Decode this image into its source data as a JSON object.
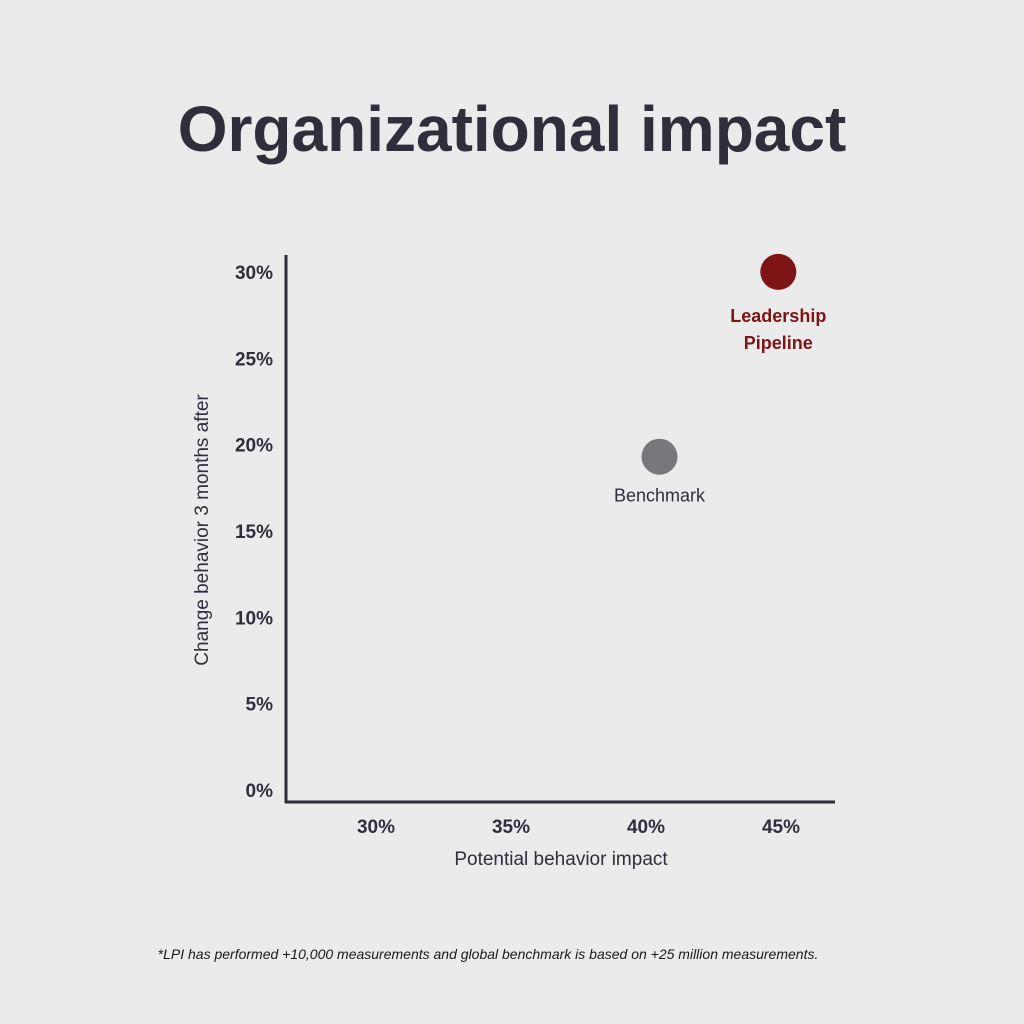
{
  "chart_data": {
    "type": "scatter",
    "title": "Organizational impact",
    "xlabel": "Potential behavior impact",
    "ylabel": "Change behavior 3 months after",
    "xlim": [
      26.9,
      50
    ],
    "ylim": [
      0,
      30
    ],
    "x_ticks": [
      "30%",
      "35%",
      "40%",
      "45%"
    ],
    "x_tick_values": [
      30,
      35,
      40,
      45
    ],
    "y_ticks": [
      "0%",
      "5%",
      "10%",
      "15%",
      "20%",
      "25%",
      "30%"
    ],
    "y_tick_values": [
      0,
      5,
      10,
      15,
      20,
      25,
      30
    ],
    "grid": false,
    "points": [
      {
        "label": "Benchmark",
        "x": 40.5,
        "y": 19.3,
        "color": "#78777c",
        "label_color": "#2f2e3a"
      },
      {
        "label": "Leadership Pipeline",
        "label_lines": [
          "Leadership",
          "Pipeline"
        ],
        "x": 44.9,
        "y": 30,
        "color": "#7d1416",
        "label_color": "#7d1416"
      }
    ]
  },
  "footnote": "*LPI has performed +10,000 measurements and global benchmark is based on +25 million measurements."
}
